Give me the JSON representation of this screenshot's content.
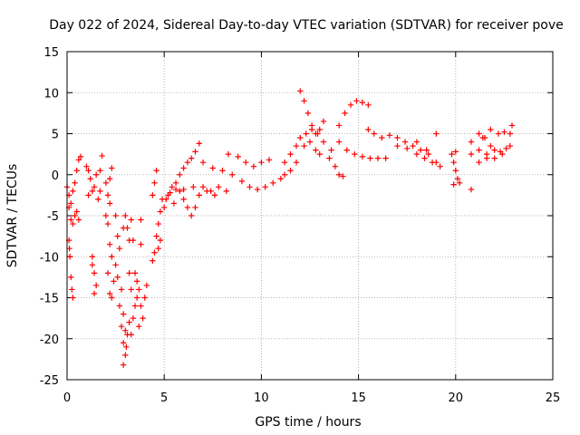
{
  "chart_data": {
    "type": "scatter",
    "title": "Day 022 of 2024, Sidereal Day-to-day VTEC variation (SDTVAR) for receiver pove",
    "xlabel": "GPS time / hours",
    "ylabel": "SDTVAR / TECUs",
    "xlim": [
      0,
      25
    ],
    "ylim": [
      -25,
      15
    ],
    "xticks": [
      "0",
      "5",
      "10",
      "15",
      "20",
      "25"
    ],
    "yticks": [
      "15",
      "10",
      "5",
      "0",
      "-5",
      "-10",
      "-15",
      "-20",
      "-25"
    ],
    "grid": true,
    "marker": "+",
    "series_color": "#ff0000",
    "series": [
      {
        "name": "SDTVAR",
        "points": [
          [
            0.0,
            -1.5
          ],
          [
            0.1,
            -2.5
          ],
          [
            0.2,
            -3.5
          ],
          [
            0.3,
            -2.0
          ],
          [
            0.4,
            -1.0
          ],
          [
            0.5,
            0.5
          ],
          [
            0.6,
            1.8
          ],
          [
            0.7,
            2.2
          ],
          [
            0.1,
            -4.0
          ],
          [
            0.2,
            -5.5
          ],
          [
            0.3,
            -6.0
          ],
          [
            0.4,
            -5.0
          ],
          [
            0.5,
            -4.5
          ],
          [
            0.6,
            -5.5
          ],
          [
            0.1,
            -8.0
          ],
          [
            0.15,
            -10.0
          ],
          [
            0.2,
            -12.5
          ],
          [
            0.25,
            -14.0
          ],
          [
            0.3,
            -15.0
          ],
          [
            0.12,
            -9.0
          ],
          [
            1.0,
            1.0
          ],
          [
            1.1,
            0.5
          ],
          [
            1.2,
            -0.5
          ],
          [
            1.3,
            -2.0
          ],
          [
            1.1,
            -2.5
          ],
          [
            1.4,
            -1.5
          ],
          [
            1.5,
            0.0
          ],
          [
            1.3,
            -10.0
          ],
          [
            1.4,
            -12.0
          ],
          [
            1.5,
            -13.5
          ],
          [
            1.4,
            -14.5
          ],
          [
            1.3,
            -11.0
          ],
          [
            1.7,
            0.5
          ],
          [
            1.8,
            2.3
          ],
          [
            1.6,
            -3.0
          ],
          [
            1.7,
            -2.0
          ],
          [
            2.0,
            -1.0
          ],
          [
            2.1,
            -2.5
          ],
          [
            2.2,
            -3.5
          ],
          [
            2.0,
            -5.0
          ],
          [
            2.1,
            -6.0
          ],
          [
            2.2,
            -8.5
          ],
          [
            2.3,
            -10.0
          ],
          [
            2.1,
            -12.0
          ],
          [
            2.2,
            -14.5
          ],
          [
            2.3,
            -15.0
          ],
          [
            2.4,
            -13.0
          ],
          [
            2.5,
            -11.0
          ],
          [
            2.2,
            -0.5
          ],
          [
            2.3,
            0.8
          ],
          [
            2.5,
            -5.0
          ],
          [
            2.6,
            -7.5
          ],
          [
            2.7,
            -9.0
          ],
          [
            2.8,
            -14.0
          ],
          [
            2.9,
            -17.0
          ],
          [
            3.0,
            -19.0
          ],
          [
            2.6,
            -12.5
          ],
          [
            2.7,
            -16.0
          ],
          [
            2.8,
            -18.5
          ],
          [
            2.9,
            -20.5
          ],
          [
            3.0,
            -22.0
          ],
          [
            2.9,
            -23.2
          ],
          [
            3.05,
            -21.0
          ],
          [
            3.1,
            -19.5
          ],
          [
            3.2,
            -18.0
          ],
          [
            3.3,
            -19.5
          ],
          [
            3.4,
            -17.5
          ],
          [
            3.5,
            -16.0
          ],
          [
            3.6,
            -15.0
          ],
          [
            3.7,
            -14.0
          ],
          [
            3.8,
            -16.0
          ],
          [
            3.9,
            -17.5
          ],
          [
            3.6,
            -13.0
          ],
          [
            3.5,
            -12.0
          ],
          [
            3.7,
            -18.5
          ],
          [
            3.3,
            -14.0
          ],
          [
            3.2,
            -12.0
          ],
          [
            3.0,
            -5.0
          ],
          [
            3.1,
            -6.5
          ],
          [
            3.2,
            -8.0
          ],
          [
            2.9,
            -6.5
          ],
          [
            3.4,
            -8.0
          ],
          [
            3.3,
            -5.5
          ],
          [
            3.8,
            -5.5
          ],
          [
            3.8,
            -8.5
          ],
          [
            4.0,
            -15.0
          ],
          [
            4.1,
            -13.5
          ],
          [
            4.4,
            -10.5
          ],
          [
            4.5,
            -9.5
          ],
          [
            4.6,
            -7.5
          ],
          [
            4.7,
            -6.0
          ],
          [
            4.8,
            -4.5
          ],
          [
            4.9,
            -3.0
          ],
          [
            4.5,
            -1.0
          ],
          [
            4.6,
            0.5
          ],
          [
            4.4,
            -2.5
          ],
          [
            4.8,
            -8.0
          ],
          [
            4.7,
            -9.0
          ],
          [
            5.0,
            -4.0
          ],
          [
            5.1,
            -3.0
          ],
          [
            5.2,
            -2.5
          ],
          [
            5.4,
            -1.5
          ],
          [
            5.6,
            -1.0
          ],
          [
            5.8,
            0.0
          ],
          [
            6.0,
            0.8
          ],
          [
            6.2,
            1.5
          ],
          [
            6.4,
            2.0
          ],
          [
            6.6,
            2.8
          ],
          [
            6.8,
            3.8
          ],
          [
            5.5,
            -3.5
          ],
          [
            5.8,
            -2.0
          ],
          [
            6.0,
            -3.0
          ],
          [
            6.2,
            -4.0
          ],
          [
            6.4,
            -5.0
          ],
          [
            6.6,
            -4.0
          ],
          [
            5.3,
            -2.2
          ],
          [
            5.6,
            -1.8
          ],
          [
            6.0,
            -1.8
          ],
          [
            6.5,
            -1.5
          ],
          [
            7.0,
            -1.5
          ],
          [
            7.4,
            -2.0
          ],
          [
            7.8,
            -1.5
          ],
          [
            8.2,
            -2.0
          ],
          [
            6.8,
            -2.5
          ],
          [
            7.2,
            -2.0
          ],
          [
            7.6,
            -2.5
          ],
          [
            7.0,
            1.5
          ],
          [
            7.5,
            0.8
          ],
          [
            8.0,
            0.5
          ],
          [
            8.5,
            0.0
          ],
          [
            9.0,
            -0.8
          ],
          [
            9.4,
            -1.5
          ],
          [
            9.8,
            -1.8
          ],
          [
            10.2,
            -1.5
          ],
          [
            10.6,
            -1.0
          ],
          [
            11.0,
            -0.5
          ],
          [
            8.3,
            2.5
          ],
          [
            8.8,
            2.2
          ],
          [
            9.2,
            1.5
          ],
          [
            9.6,
            1.0
          ],
          [
            10.0,
            1.5
          ],
          [
            10.4,
            1.8
          ],
          [
            11.2,
            1.5
          ],
          [
            11.5,
            2.5
          ],
          [
            11.8,
            3.5
          ],
          [
            12.0,
            4.5
          ],
          [
            12.3,
            5.0
          ],
          [
            12.6,
            5.5
          ],
          [
            12.9,
            5.0
          ],
          [
            13.2,
            4.0
          ],
          [
            12.0,
            10.2
          ],
          [
            12.2,
            9.0
          ],
          [
            12.4,
            7.5
          ],
          [
            12.6,
            6.0
          ],
          [
            12.8,
            5.0
          ],
          [
            11.2,
            0.0
          ],
          [
            11.5,
            0.5
          ],
          [
            11.8,
            1.5
          ],
          [
            12.2,
            3.5
          ],
          [
            12.5,
            4.0
          ],
          [
            12.8,
            3.0
          ],
          [
            13.0,
            2.5
          ],
          [
            13.2,
            6.5
          ],
          [
            13.0,
            5.5
          ],
          [
            13.5,
            2.0
          ],
          [
            13.8,
            1.0
          ],
          [
            14.0,
            0.0
          ],
          [
            13.6,
            3.0
          ],
          [
            14.2,
            -0.2
          ],
          [
            14.0,
            6.0
          ],
          [
            14.3,
            7.5
          ],
          [
            14.6,
            8.5
          ],
          [
            14.9,
            9.0
          ],
          [
            15.2,
            8.8
          ],
          [
            15.5,
            8.5
          ],
          [
            14.0,
            4.0
          ],
          [
            14.4,
            3.0
          ],
          [
            14.8,
            2.5
          ],
          [
            15.2,
            2.2
          ],
          [
            15.6,
            2.0
          ],
          [
            16.0,
            2.0
          ],
          [
            16.4,
            2.0
          ],
          [
            15.5,
            5.5
          ],
          [
            15.8,
            5.0
          ],
          [
            16.2,
            4.5
          ],
          [
            16.6,
            4.8
          ],
          [
            17.0,
            4.5
          ],
          [
            17.4,
            4.0
          ],
          [
            17.8,
            3.5
          ],
          [
            18.2,
            3.0
          ],
          [
            18.6,
            2.5
          ],
          [
            19.0,
            1.5
          ],
          [
            17.0,
            3.5
          ],
          [
            17.5,
            3.2
          ],
          [
            18.0,
            2.5
          ],
          [
            18.4,
            2.0
          ],
          [
            18.8,
            1.5
          ],
          [
            19.2,
            1.0
          ],
          [
            18.0,
            4.0
          ],
          [
            18.5,
            3.0
          ],
          [
            19.0,
            5.0
          ],
          [
            19.8,
            2.5
          ],
          [
            19.9,
            1.5
          ],
          [
            20.0,
            0.5
          ],
          [
            20.1,
            -0.5
          ],
          [
            20.2,
            -1.0
          ],
          [
            19.9,
            -1.2
          ],
          [
            20.0,
            2.8
          ],
          [
            20.8,
            -1.8
          ],
          [
            20.8,
            4.0
          ],
          [
            21.2,
            5.0
          ],
          [
            21.4,
            4.5
          ],
          [
            20.8,
            2.5
          ],
          [
            21.2,
            3.0
          ],
          [
            21.6,
            2.5
          ],
          [
            22.0,
            2.0
          ],
          [
            22.4,
            2.5
          ],
          [
            22.8,
            3.5
          ],
          [
            21.5,
            4.5
          ],
          [
            21.8,
            3.5
          ],
          [
            22.0,
            3.0
          ],
          [
            22.3,
            2.8
          ],
          [
            22.6,
            3.2
          ],
          [
            22.9,
            6.0
          ],
          [
            22.8,
            5.0
          ],
          [
            21.8,
            5.5
          ],
          [
            22.2,
            5.0
          ],
          [
            22.5,
            5.2
          ],
          [
            21.2,
            1.5
          ],
          [
            21.6,
            2.0
          ]
        ]
      }
    ]
  }
}
